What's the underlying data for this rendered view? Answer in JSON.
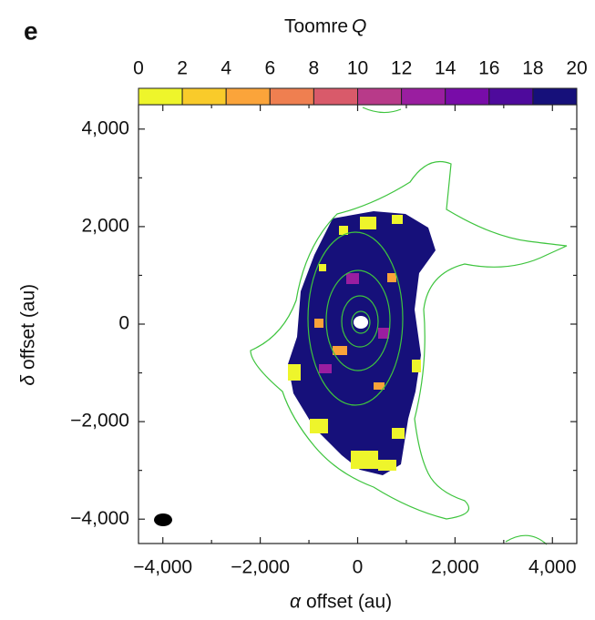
{
  "chart_data": {
    "type": "heatmap",
    "panel_label": "e",
    "colorbar": {
      "title": "Toomre",
      "title_symbol": "Q",
      "lim": [
        0,
        20
      ],
      "ticks": [
        0,
        2,
        4,
        6,
        8,
        10,
        12,
        14,
        16,
        18,
        20
      ],
      "colors": [
        "#eef52b",
        "#f9cb2a",
        "#fba43a",
        "#ef7f50",
        "#d95a6a",
        "#b83a89",
        "#9a1ea0",
        "#780ca8",
        "#4e0a9c",
        "#16107a"
      ]
    },
    "x_symbol": "α",
    "xlabel": "offset (au)",
    "y_symbol": "δ",
    "ylabel": "offset (au)",
    "xlim": [
      -4500,
      4500
    ],
    "ylim": [
      -4500,
      4500
    ],
    "xticks": [
      {
        "value": -4000,
        "label": "−4,000"
      },
      {
        "value": -2000,
        "label": "−2,000"
      },
      0,
      {
        "value": 2000,
        "label": "2,000"
      },
      {
        "value": 4000,
        "label": "4,000"
      }
    ],
    "yticks": [
      {
        "value": -4000,
        "label": "−4,000"
      },
      {
        "value": -2000,
        "label": "−2,000"
      },
      0,
      {
        "value": 2000,
        "label": "2,000"
      },
      {
        "value": 4000,
        "label": "4,000"
      }
    ],
    "xminorticks": [
      -3000,
      -1000,
      1000,
      3000
    ],
    "yminorticks": [
      -3000,
      -1000,
      1000,
      3000
    ]
  }
}
